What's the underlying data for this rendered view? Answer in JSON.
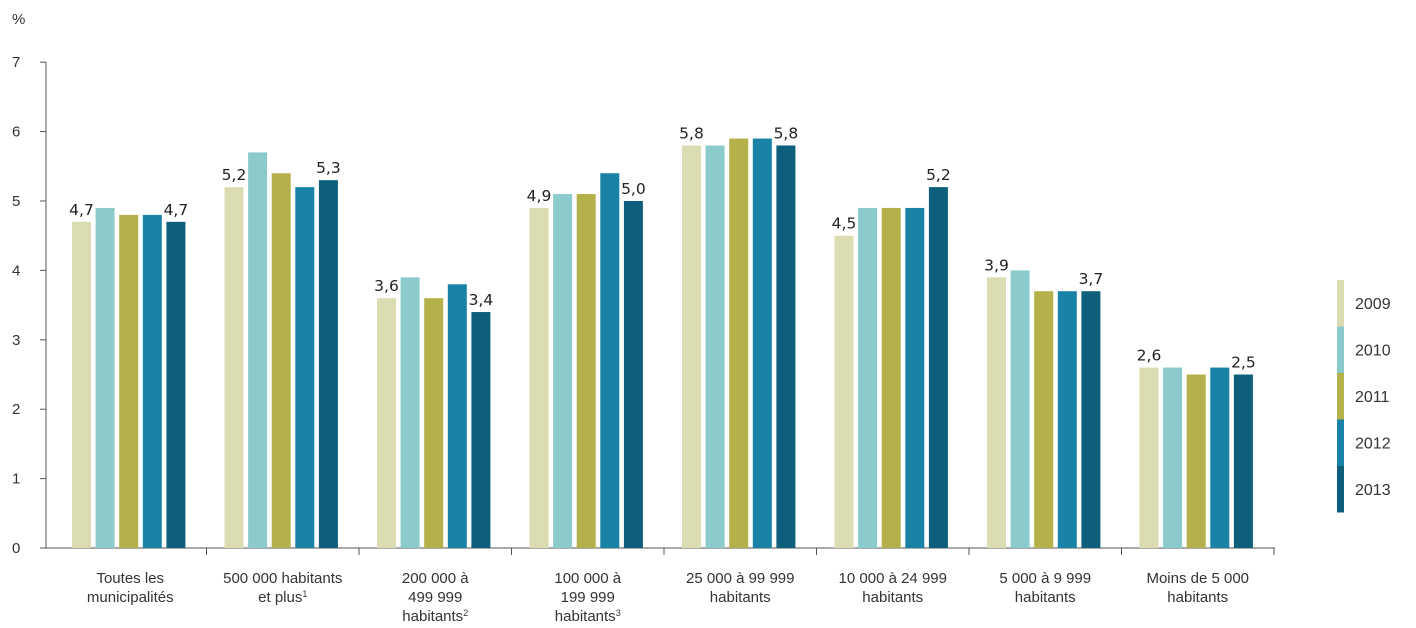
{
  "chart_data": {
    "type": "bar",
    "ylabel": "%",
    "ylim": [
      0,
      7
    ],
    "yticks": [
      "0",
      "1",
      "2",
      "3",
      "4",
      "5",
      "6",
      "7"
    ],
    "grid": false,
    "legend_position": "right",
    "categories": [
      {
        "lines": [
          "Toutes les",
          "municipalités"
        ]
      },
      {
        "lines": [
          "500 000 habitants",
          "et plus"
        ],
        "sup": "1"
      },
      {
        "lines": [
          "200 000 à",
          "499 999",
          "habitants"
        ],
        "sup": "2"
      },
      {
        "lines": [
          "100 000 à",
          "199 999",
          "habitants"
        ],
        "sup": "3"
      },
      {
        "lines": [
          "25 000 à 99 999",
          "habitants"
        ]
      },
      {
        "lines": [
          "10 000 à 24 999",
          "habitants"
        ]
      },
      {
        "lines": [
          "5 000 à 9 999",
          "habitants"
        ]
      },
      {
        "lines": [
          "Moins de 5 000",
          "habitants"
        ]
      }
    ],
    "series": [
      {
        "name": "2009",
        "color": "#dcdcb2",
        "values": [
          4.7,
          5.2,
          3.6,
          4.9,
          5.8,
          4.5,
          3.9,
          2.6
        ],
        "labels": [
          "4,7",
          "5,2",
          "3,6",
          "4,9",
          "5,8",
          "4,5",
          "3,9",
          "2,6"
        ]
      },
      {
        "name": "2010",
        "color": "#8ccbcb",
        "values": [
          4.9,
          5.7,
          3.9,
          5.1,
          5.8,
          4.9,
          4.0,
          2.6
        ]
      },
      {
        "name": "2011",
        "color": "#b4b04a",
        "values": [
          4.8,
          5.4,
          3.6,
          5.1,
          5.9,
          4.9,
          3.7,
          2.5
        ]
      },
      {
        "name": "2012",
        "color": "#1883a6",
        "values": [
          4.8,
          5.2,
          3.8,
          5.4,
          5.9,
          4.9,
          3.7,
          2.6
        ]
      },
      {
        "name": "2013",
        "color": "#0d5f7c",
        "values": [
          4.7,
          5.3,
          3.4,
          5.0,
          5.8,
          5.2,
          3.7,
          2.5
        ],
        "labels": [
          "4,7",
          "5,3",
          "3,4",
          "5,0",
          "5,8",
          "5,2",
          "3,7",
          "2,5"
        ]
      }
    ]
  }
}
